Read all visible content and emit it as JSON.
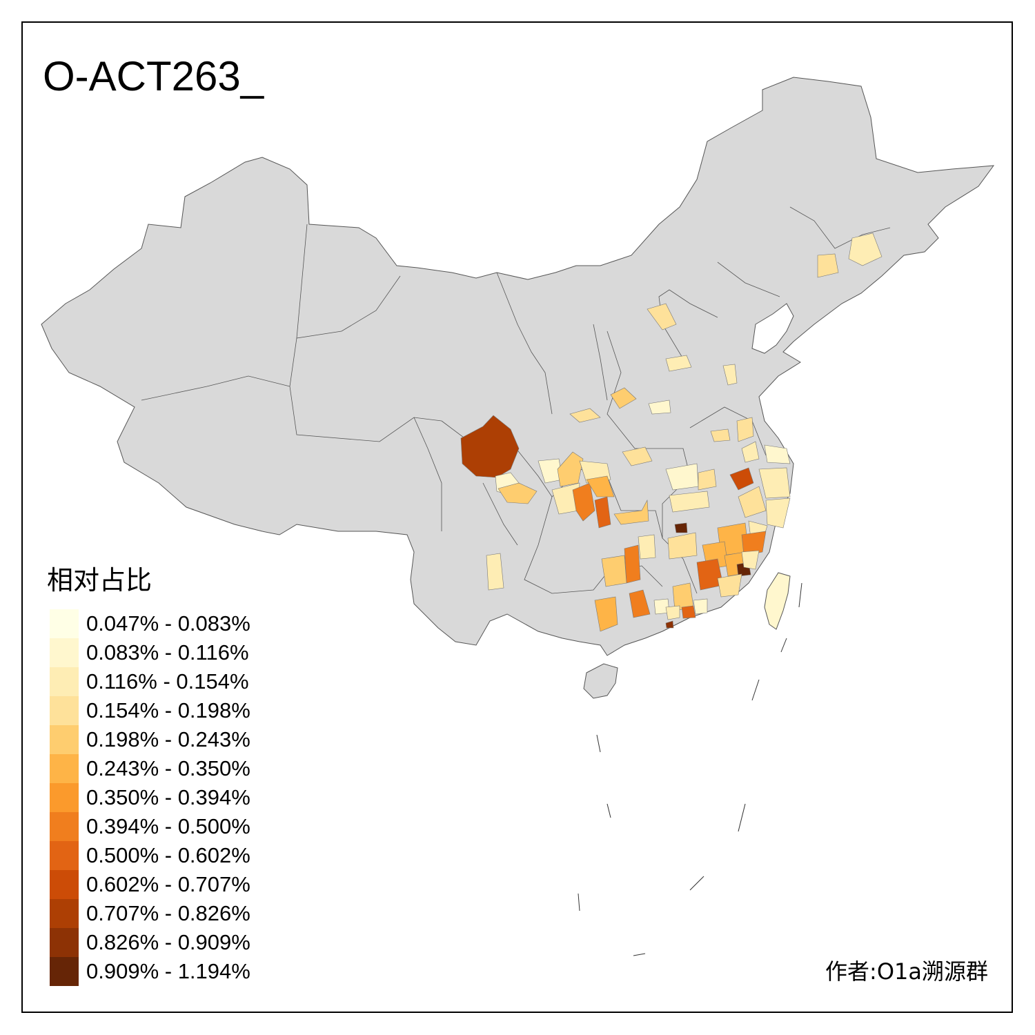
{
  "title": "O-ACT263_",
  "legend": {
    "title": "相对占比",
    "items": [
      {
        "label": "0.047% - 0.083%",
        "color": "#FFFFE6"
      },
      {
        "label": "0.083% - 0.116%",
        "color": "#FFF7CE"
      },
      {
        "label": "0.116% - 0.154%",
        "color": "#FEEDB4"
      },
      {
        "label": "0.154% - 0.198%",
        "color": "#FEE19A"
      },
      {
        "label": "0.198% - 0.243%",
        "color": "#FECD6F"
      },
      {
        "label": "0.243% - 0.350%",
        "color": "#FEB447"
      },
      {
        "label": "0.350% - 0.394%",
        "color": "#FB9A2C"
      },
      {
        "label": "0.394% - 0.500%",
        "color": "#F07E1E"
      },
      {
        "label": "0.500% - 0.602%",
        "color": "#E26414"
      },
      {
        "label": "0.602% - 0.707%",
        "color": "#CC4C07"
      },
      {
        "label": "0.707% - 0.826%",
        "color": "#AD3F04"
      },
      {
        "label": "0.826% - 0.909%",
        "color": "#8D3205"
      },
      {
        "label": "0.909% - 1.194%",
        "color": "#662506"
      }
    ]
  },
  "colors": {
    "base_fill": "#D9D9D9",
    "border": "#555555",
    "frame": "#000000"
  },
  "author": "作者:O1a溯源群"
}
